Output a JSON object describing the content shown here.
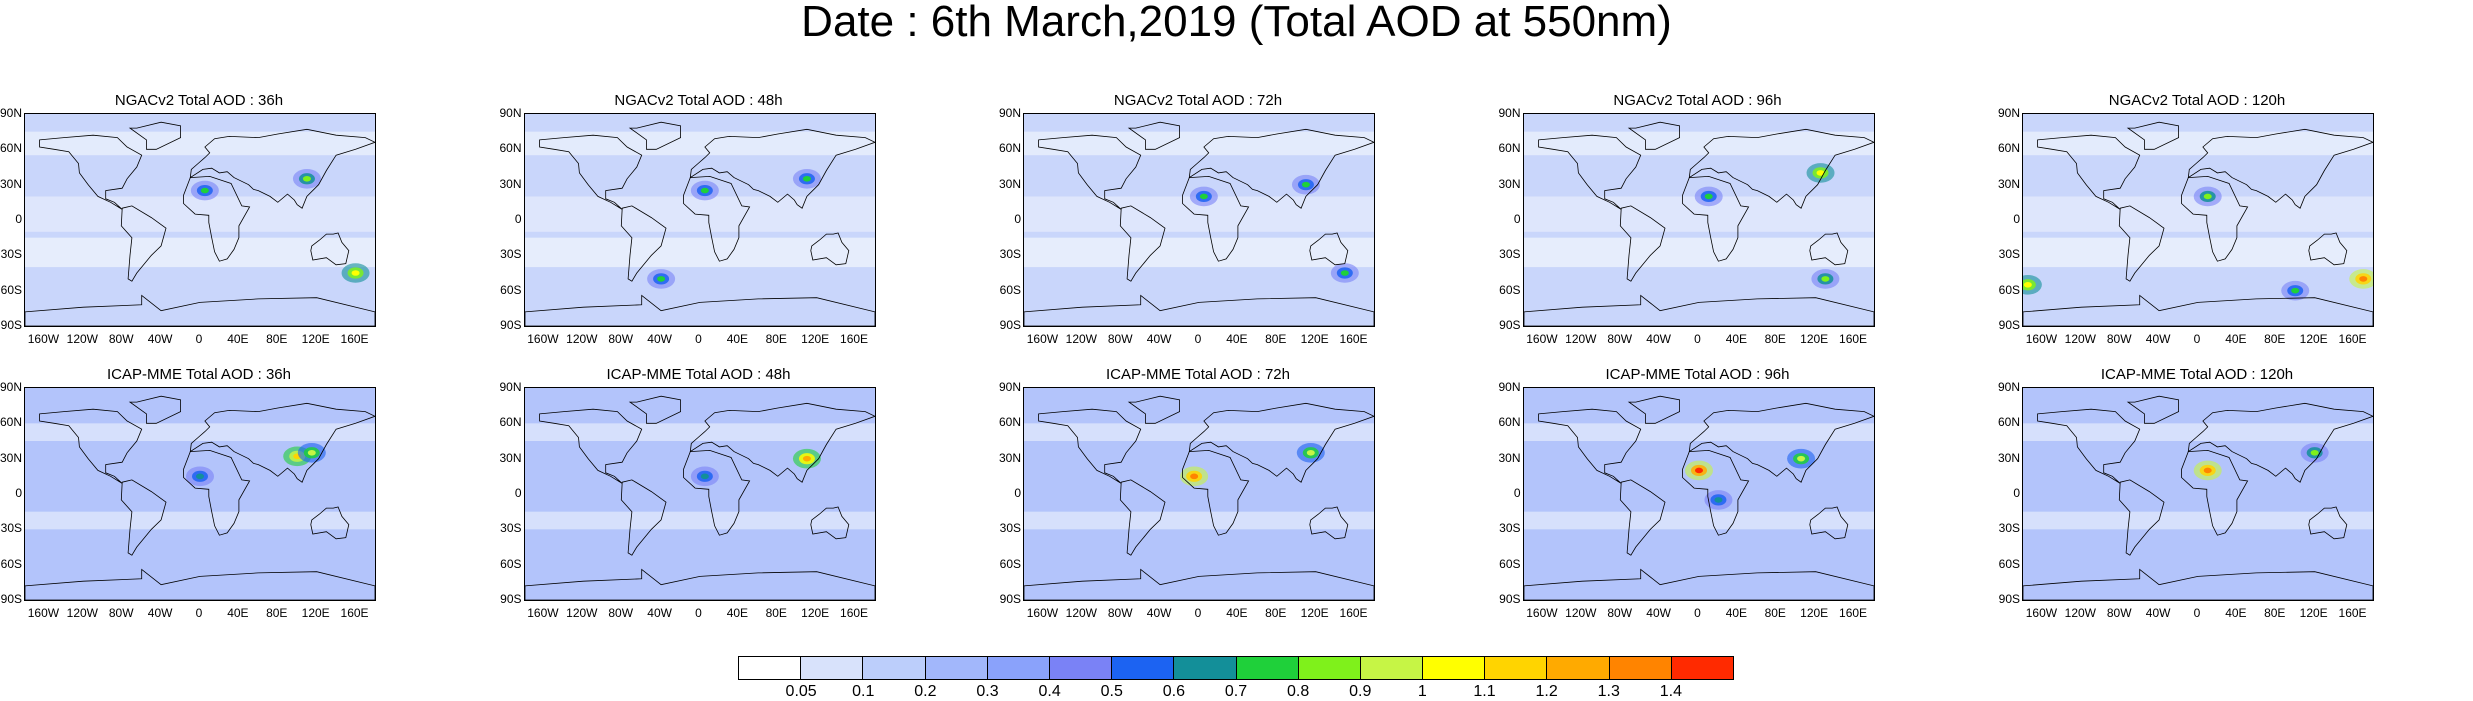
{
  "title": "Date : 6th March,2019 (Total AOD at 550nm)",
  "lat_labels": [
    "90N",
    "60N",
    "30N",
    "0",
    "30S",
    "60S",
    "90S"
  ],
  "lon_labels": [
    "160W",
    "120W",
    "80W",
    "40W",
    "0",
    "40E",
    "80E",
    "120E",
    "160E"
  ],
  "panels": [
    {
      "title": "NGACv2 Total AOD : 36h",
      "hotspots": [
        {
          "lon": 5,
          "lat": 25,
          "level": 0.7
        },
        {
          "lon": 110,
          "lat": 35,
          "level": 0.8
        },
        {
          "lon": 160,
          "lat": -45,
          "level": 1.0
        }
      ]
    },
    {
      "title": "NGACv2 Total AOD : 48h",
      "hotspots": [
        {
          "lon": 5,
          "lat": 25,
          "level": 0.7
        },
        {
          "lon": 110,
          "lat": 35,
          "level": 0.7
        },
        {
          "lon": -40,
          "lat": -50,
          "level": 0.7
        }
      ]
    },
    {
      "title": "NGACv2 Total AOD : 72h",
      "hotspots": [
        {
          "lon": 5,
          "lat": 20,
          "level": 0.7
        },
        {
          "lon": 110,
          "lat": 30,
          "level": 0.7
        },
        {
          "lon": 150,
          "lat": -45,
          "level": 0.7
        }
      ]
    },
    {
      "title": "NGACv2 Total AOD : 96h",
      "hotspots": [
        {
          "lon": 10,
          "lat": 20,
          "level": 0.7
        },
        {
          "lon": 125,
          "lat": 40,
          "level": 1.0
        },
        {
          "lon": 130,
          "lat": -50,
          "level": 0.8
        }
      ]
    },
    {
      "title": "NGACv2 Total AOD : 120h",
      "hotspots": [
        {
          "lon": 10,
          "lat": 20,
          "level": 0.8
        },
        {
          "lon": 170,
          "lat": -50,
          "level": 1.3
        },
        {
          "lon": 100,
          "lat": -60,
          "level": 0.7
        },
        {
          "lon": -175,
          "lat": -55,
          "level": 1.0
        }
      ]
    },
    {
      "title": "ICAP-MME Total AOD : 36h",
      "hotspots": [
        {
          "lon": 100,
          "lat": 32,
          "level": 1.1
        },
        {
          "lon": 115,
          "lat": 35,
          "level": 0.9
        },
        {
          "lon": 0,
          "lat": 15,
          "level": 0.6
        }
      ]
    },
    {
      "title": "ICAP-MME Total AOD : 48h",
      "hotspots": [
        {
          "lon": 110,
          "lat": 30,
          "level": 1.2
        },
        {
          "lon": 5,
          "lat": 15,
          "level": 0.6
        }
      ]
    },
    {
      "title": "ICAP-MME Total AOD : 72h",
      "hotspots": [
        {
          "lon": -5,
          "lat": 15,
          "level": 1.3
        },
        {
          "lon": 115,
          "lat": 35,
          "level": 0.9
        }
      ]
    },
    {
      "title": "ICAP-MME Total AOD : 96h",
      "hotspots": [
        {
          "lon": 0,
          "lat": 20,
          "level": 1.4
        },
        {
          "lon": 105,
          "lat": 30,
          "level": 0.9
        },
        {
          "lon": 20,
          "lat": -5,
          "level": 0.6
        }
      ]
    },
    {
      "title": "ICAP-MME Total AOD : 120h",
      "hotspots": [
        {
          "lon": 10,
          "lat": 20,
          "level": 1.3
        },
        {
          "lon": 120,
          "lat": 35,
          "level": 0.8
        }
      ]
    }
  ],
  "colorbar": {
    "colors": [
      "#ffffff",
      "#d8e2fb",
      "#bccefb",
      "#a2b7fb",
      "#8aa2fb",
      "#7a82f6",
      "#1c63f2",
      "#138f99",
      "#1fd03a",
      "#7ff11b",
      "#c6f545",
      "#ffff00",
      "#ffd400",
      "#ffaa00",
      "#ff8400",
      "#ff2a00"
    ],
    "labels": [
      "0.05",
      "0.1",
      "0.2",
      "0.3",
      "0.4",
      "0.5",
      "0.6",
      "0.7",
      "0.8",
      "0.9",
      "1",
      "1.1",
      "1.2",
      "1.3",
      "1.4"
    ]
  }
}
